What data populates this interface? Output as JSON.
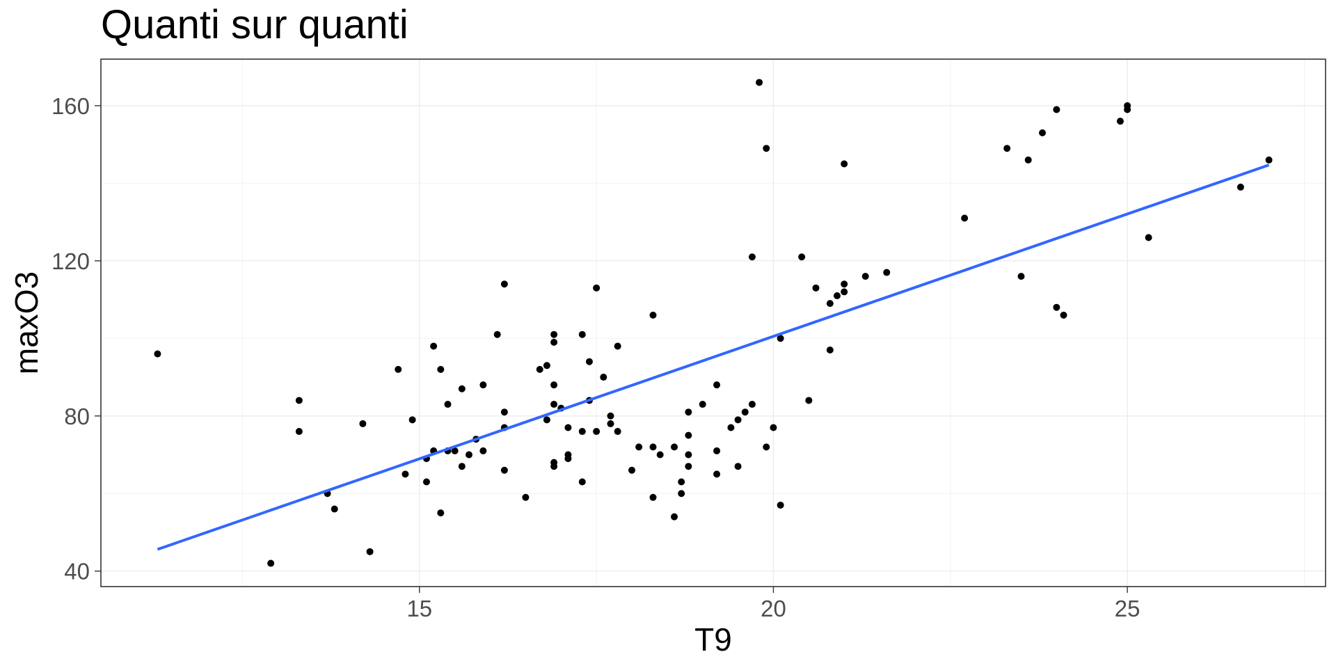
{
  "chart_data": {
    "type": "scatter",
    "title": "Quanti sur quanti",
    "xlabel": "T9",
    "ylabel": "maxO3",
    "xlim": [
      10.5,
      27.8
    ],
    "ylim": [
      36,
      172
    ],
    "x_ticks": [
      15,
      20,
      25
    ],
    "y_ticks": [
      40,
      80,
      120,
      160
    ],
    "x_tick_labels": [
      "15",
      "20",
      "25"
    ],
    "y_tick_labels": [
      "40",
      "80",
      "120",
      "160"
    ],
    "grid": true,
    "point_color": "#000000",
    "line_color": "#3366ff",
    "points": [
      [
        11.3,
        96
      ],
      [
        12.9,
        42
      ],
      [
        13.3,
        84
      ],
      [
        13.3,
        76
      ],
      [
        13.7,
        60
      ],
      [
        13.8,
        56
      ],
      [
        14.2,
        78
      ],
      [
        14.3,
        45
      ],
      [
        14.7,
        92
      ],
      [
        14.8,
        65
      ],
      [
        14.9,
        79
      ],
      [
        15.1,
        69
      ],
      [
        15.1,
        63
      ],
      [
        15.2,
        98
      ],
      [
        15.2,
        71
      ],
      [
        15.3,
        92
      ],
      [
        15.3,
        55
      ],
      [
        15.4,
        83
      ],
      [
        15.4,
        71
      ],
      [
        15.5,
        71
      ],
      [
        15.6,
        87
      ],
      [
        15.6,
        67
      ],
      [
        15.7,
        70
      ],
      [
        15.8,
        74
      ],
      [
        15.9,
        88
      ],
      [
        15.9,
        71
      ],
      [
        16.1,
        101
      ],
      [
        16.2,
        114
      ],
      [
        16.2,
        81
      ],
      [
        16.2,
        77
      ],
      [
        16.2,
        66
      ],
      [
        16.5,
        59
      ],
      [
        16.7,
        92
      ],
      [
        16.8,
        93
      ],
      [
        16.8,
        79
      ],
      [
        16.9,
        101
      ],
      [
        16.9,
        99
      ],
      [
        16.9,
        88
      ],
      [
        16.9,
        83
      ],
      [
        16.9,
        68
      ],
      [
        16.9,
        67
      ],
      [
        17.0,
        82
      ],
      [
        17.1,
        77
      ],
      [
        17.1,
        70
      ],
      [
        17.1,
        69
      ],
      [
        17.3,
        101
      ],
      [
        17.3,
        76
      ],
      [
        17.3,
        63
      ],
      [
        17.4,
        94
      ],
      [
        17.4,
        84
      ],
      [
        17.5,
        113
      ],
      [
        17.5,
        76
      ],
      [
        17.6,
        90
      ],
      [
        17.7,
        80
      ],
      [
        17.7,
        78
      ],
      [
        17.8,
        98
      ],
      [
        17.8,
        76
      ],
      [
        18.0,
        66
      ],
      [
        18.1,
        72
      ],
      [
        18.3,
        106
      ],
      [
        18.3,
        72
      ],
      [
        18.3,
        59
      ],
      [
        18.4,
        70
      ],
      [
        18.6,
        72
      ],
      [
        18.6,
        54
      ],
      [
        18.7,
        63
      ],
      [
        18.7,
        60
      ],
      [
        18.8,
        81
      ],
      [
        18.8,
        75
      ],
      [
        18.8,
        70
      ],
      [
        18.8,
        67
      ],
      [
        19.0,
        83
      ],
      [
        19.2,
        88
      ],
      [
        19.2,
        71
      ],
      [
        19.2,
        65
      ],
      [
        19.4,
        77
      ],
      [
        19.5,
        79
      ],
      [
        19.5,
        67
      ],
      [
        19.6,
        81
      ],
      [
        19.7,
        121
      ],
      [
        19.7,
        83
      ],
      [
        19.8,
        166
      ],
      [
        19.9,
        149
      ],
      [
        19.9,
        72
      ],
      [
        20.0,
        77
      ],
      [
        20.1,
        100
      ],
      [
        20.1,
        57
      ],
      [
        20.4,
        121
      ],
      [
        20.5,
        84
      ],
      [
        20.6,
        113
      ],
      [
        20.8,
        109
      ],
      [
        20.8,
        97
      ],
      [
        20.9,
        111
      ],
      [
        21.0,
        145
      ],
      [
        21.0,
        114
      ],
      [
        21.0,
        112
      ],
      [
        21.3,
        116
      ],
      [
        21.6,
        117
      ],
      [
        22.7,
        131
      ],
      [
        23.3,
        149
      ],
      [
        23.5,
        116
      ],
      [
        23.6,
        146
      ],
      [
        23.8,
        153
      ],
      [
        24.0,
        159
      ],
      [
        24.0,
        108
      ],
      [
        24.1,
        106
      ],
      [
        24.9,
        156
      ],
      [
        25.0,
        160
      ],
      [
        25.0,
        159
      ],
      [
        25.3,
        126
      ],
      [
        26.6,
        139
      ],
      [
        27.0,
        146
      ]
    ],
    "fit_line": {
      "x": [
        11.3,
        27.0
      ],
      "y": [
        45.6,
        144.7
      ]
    }
  }
}
